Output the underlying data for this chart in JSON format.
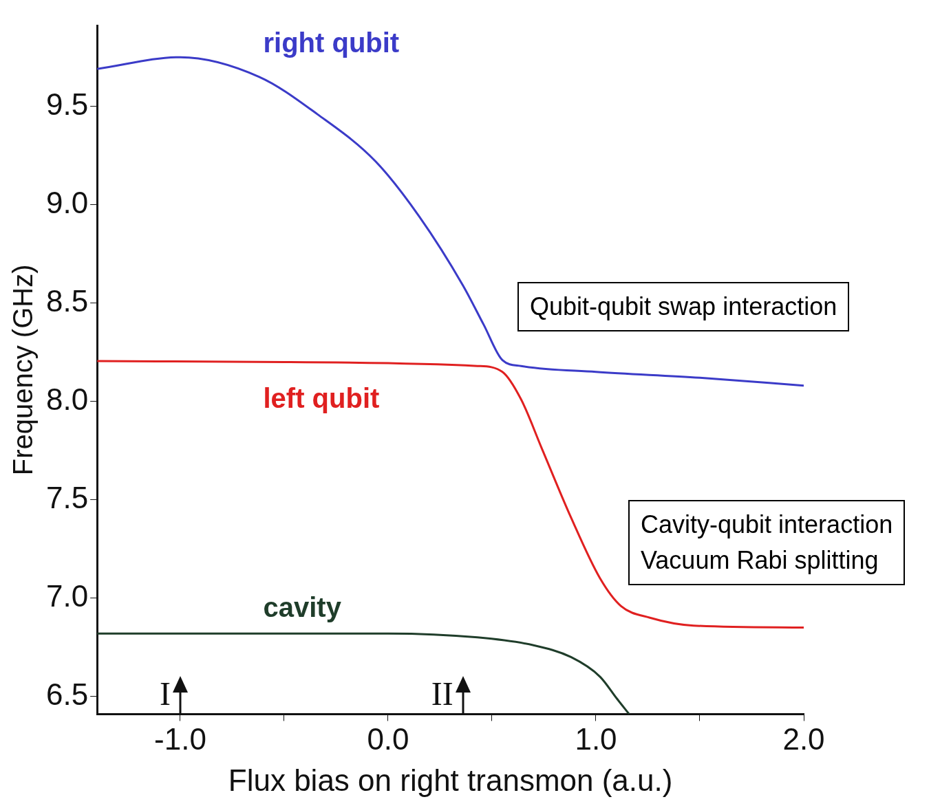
{
  "chart_data": {
    "type": "line",
    "xlabel": "Flux bias on right transmon (a.u.)",
    "ylabel": "Frequency (GHz)",
    "xlim": [
      -1.4,
      2.0
    ],
    "ylim": [
      6.41,
      9.91
    ],
    "xticks": [
      {
        "value": -1,
        "label": "-1.0"
      },
      {
        "value": -0.5,
        "label": null
      },
      {
        "value": 0,
        "label": "0.0"
      },
      {
        "value": 0.5,
        "label": null
      },
      {
        "value": 1,
        "label": "1.0"
      },
      {
        "value": 1.5,
        "label": null
      },
      {
        "value": 2,
        "label": "2.0"
      }
    ],
    "yticks": [
      6.5,
      {
        "value": 7,
        "label": "7.0"
      },
      7.5,
      {
        "value": 8,
        "label": "8.0"
      },
      8.5,
      {
        "value": 9,
        "label": "9.0"
      },
      9.5
    ],
    "grid": false,
    "legend": false,
    "marker": "none",
    "line_style": "solid",
    "series": [
      {
        "name": "right qubit",
        "color": "#3b3bc8",
        "x": [
          -1.4,
          -1.0,
          -0.62,
          -0.34,
          -0.06,
          0.15,
          0.36,
          0.46,
          0.55,
          0.64,
          1.0,
          1.5,
          2.0
        ],
        "values": [
          9.69,
          9.75,
          9.65,
          9.46,
          9.22,
          8.94,
          8.59,
          8.39,
          8.21,
          8.18,
          8.15,
          8.12,
          8.08
        ]
      },
      {
        "name": "left qubit",
        "color": "#e02020",
        "x": [
          -1.4,
          -0.5,
          0.43,
          0.55,
          0.64,
          0.74,
          0.88,
          1.02,
          1.12,
          1.26,
          1.47,
          2.0
        ],
        "values": [
          8.205,
          8.2,
          8.18,
          8.15,
          8.01,
          7.76,
          7.41,
          7.1,
          6.96,
          6.9,
          6.86,
          6.85
        ]
      },
      {
        "name": "cavity",
        "color": "#1f3d2a",
        "x": [
          -1.4,
          0.0,
          0.43,
          0.7,
          0.88,
          1.02,
          1.1,
          1.16
        ],
        "values": [
          6.82,
          6.82,
          6.8,
          6.76,
          6.7,
          6.6,
          6.49,
          6.41
        ]
      }
    ],
    "annotations": [
      "Qubit-qubit swap interaction",
      "Cavity-qubit interaction\nVacuum Rabi splitting",
      "I",
      "II"
    ]
  }
}
